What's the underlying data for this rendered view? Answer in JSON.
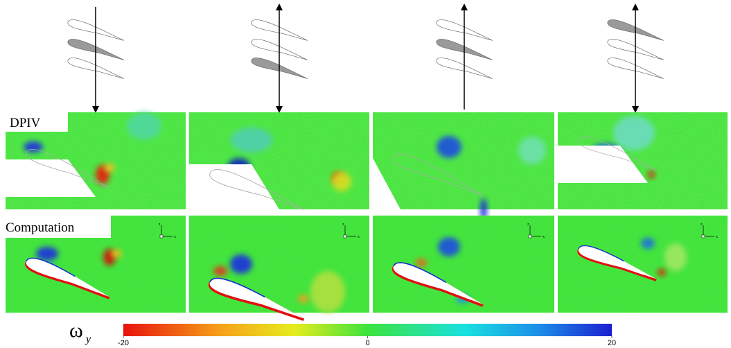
{
  "rows": {
    "dpiv": "DPIV",
    "computation": "Computation"
  },
  "triad_labels": {
    "vertical": "z",
    "horizontal": "x"
  },
  "colorbar": {
    "symbol": "ω",
    "subscript": "y",
    "lim": [
      -20,
      20
    ],
    "ticks": [
      -20,
      0,
      20
    ]
  }
}
